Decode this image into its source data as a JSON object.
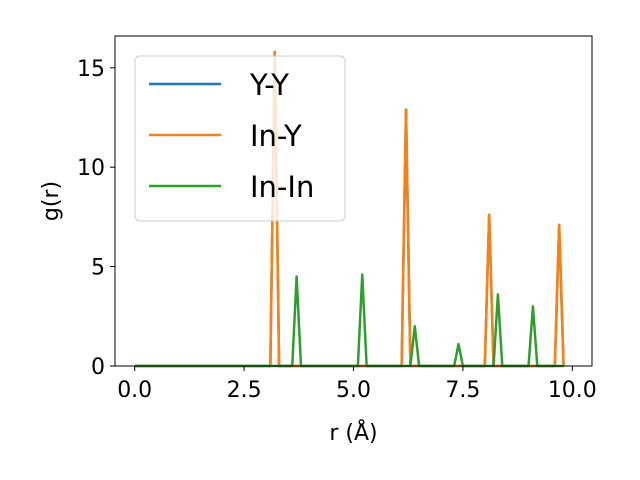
{
  "chart_data": {
    "type": "line",
    "xlabel": "r (Å)",
    "ylabel": "g(r)",
    "xlim": [
      -0.45,
      10.45
    ],
    "ylim": [
      0,
      16.6
    ],
    "xticks": [
      0.0,
      2.5,
      5.0,
      7.5,
      10.0
    ],
    "xtick_labels": [
      "0.0",
      "2.5",
      "5.0",
      "7.5",
      "10.0"
    ],
    "yticks": [
      0,
      5,
      10,
      15
    ],
    "ytick_labels": [
      "0",
      "5",
      "10",
      "15"
    ],
    "grid": false,
    "legend_position": "upper-left",
    "series": [
      {
        "name": "Y-Y",
        "color": "#1f77b4",
        "x": [
          0.0,
          3.1,
          3.2,
          3.3,
          6.1,
          6.2,
          6.3,
          8.0,
          8.1,
          8.2,
          9.6,
          9.7,
          9.8
        ],
        "y": [
          0,
          0,
          15.8,
          0,
          0,
          12.9,
          0,
          0,
          7.6,
          0,
          0,
          7.1,
          0
        ]
      },
      {
        "name": "In-Y",
        "color": "#ff7f0e",
        "x": [
          0.0,
          3.1,
          3.2,
          3.3,
          6.1,
          6.2,
          6.3,
          8.0,
          8.1,
          8.2,
          9.6,
          9.7,
          9.8
        ],
        "y": [
          0,
          0,
          15.8,
          0,
          0,
          12.9,
          0,
          0,
          7.6,
          0,
          0,
          7.1,
          0
        ]
      },
      {
        "name": "In-In",
        "color": "#2ca02c",
        "x": [
          0.0,
          3.6,
          3.7,
          3.8,
          5.1,
          5.2,
          5.3,
          6.3,
          6.4,
          6.5,
          7.3,
          7.4,
          7.5,
          8.2,
          8.3,
          8.4,
          9.0,
          9.1,
          9.2,
          9.8
        ],
        "y": [
          0,
          0,
          4.5,
          0,
          0,
          4.6,
          0,
          0,
          2.0,
          0,
          0,
          1.1,
          0,
          0,
          3.6,
          0,
          0,
          3.0,
          0,
          0
        ]
      }
    ]
  }
}
